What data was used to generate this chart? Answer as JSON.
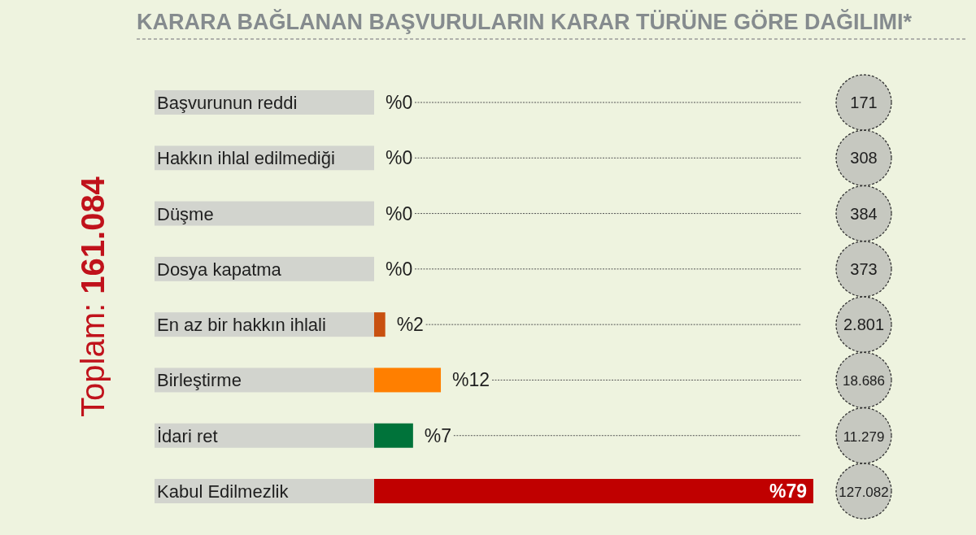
{
  "chart_data": {
    "type": "bar",
    "orientation": "horizontal",
    "title": "KARARA BAĞLANAN BAŞVURULARIN KARAR TÜRÜNE GÖRE DAĞILIMI*",
    "grid": "y",
    "categories": [
      "Başvurunun reddi",
      "Hakkın ihlal edilmediği",
      "Düşme",
      "Dosya kapatma",
      "En az bir hakkın ihlali",
      "Birleştirme",
      "İdari ret",
      "Kabul Edilmezlik"
    ],
    "values": [
      0,
      0,
      0,
      0,
      2,
      12,
      7,
      79
    ],
    "colors": [
      "#e8820c",
      "#1bb9a5",
      "#d40010",
      "#1a6fa3",
      "#c85010",
      "#ff7f00",
      "#00733a",
      "#c00000"
    ],
    "value_labels": [
      "%0",
      "%0",
      "%0",
      "%0",
      "%2",
      "%12",
      "%7",
      "%79"
    ],
    "annotations": [
      "Toplam: 161.084",
      "171",
      "308",
      "384",
      "373",
      "2.801",
      "18.686",
      "11.279",
      "127.082"
    ]
  }
}
